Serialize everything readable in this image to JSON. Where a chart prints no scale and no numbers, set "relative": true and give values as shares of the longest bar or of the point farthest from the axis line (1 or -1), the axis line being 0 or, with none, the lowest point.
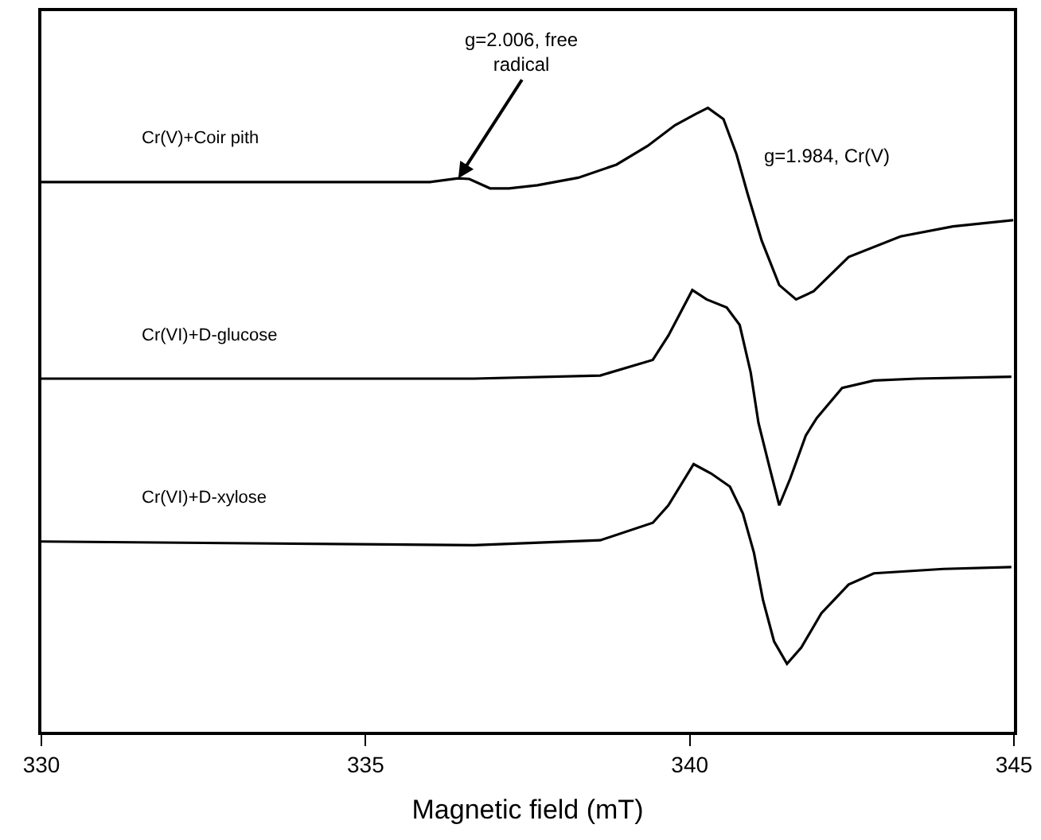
{
  "chart_data": {
    "type": "line",
    "relative": true,
    "xlabel": "Magnetic field (mT)",
    "xlim": [
      330,
      345
    ],
    "xticks": [
      330,
      335,
      340,
      345
    ],
    "legend": false,
    "marker": "none",
    "line_style": "solid",
    "tick_labels": "x",
    "series": [
      {
        "name": "Cr(V)+Coir pith",
        "color": "#000000",
        "x": [
          330,
          334.24,
          335.99,
          336.43,
          336.6,
          336.92,
          337.21,
          337.65,
          338.28,
          338.87,
          339.35,
          339.77,
          340.09,
          340.28,
          340.52,
          340.72,
          340.89,
          341.11,
          341.38,
          341.64,
          341.91,
          342.45,
          343.25,
          344.06,
          344.99
        ],
        "values": [
          0.881,
          0.881,
          0.881,
          0.887,
          0.886,
          0.871,
          0.871,
          0.876,
          0.888,
          0.909,
          0.939,
          0.972,
          0.99,
          1.0,
          0.982,
          0.926,
          0.863,
          0.787,
          0.716,
          0.693,
          0.706,
          0.761,
          0.794,
          0.81,
          0.82
        ]
      },
      {
        "name": "Cr(VI)+D-glucose",
        "color": "#000000",
        "x": [
          330,
          336.67,
          338.62,
          339.43,
          339.67,
          340.04,
          340.26,
          340.57,
          340.77,
          340.94,
          341.06,
          341.23,
          341.38,
          341.55,
          341.79,
          341.96,
          342.35,
          342.84,
          343.5,
          344.96
        ],
        "values": [
          0.566,
          0.566,
          0.571,
          0.596,
          0.635,
          0.708,
          0.693,
          0.68,
          0.652,
          0.576,
          0.495,
          0.424,
          0.363,
          0.406,
          0.475,
          0.503,
          0.551,
          0.563,
          0.566,
          0.569
        ]
      },
      {
        "name": "Cr(VI)+D-xylose",
        "color": "#000000",
        "x": [
          330,
          336.67,
          338.62,
          339.43,
          339.67,
          340.06,
          340.33,
          340.62,
          340.82,
          340.99,
          341.13,
          341.3,
          341.5,
          341.72,
          342.03,
          342.45,
          342.84,
          343.91,
          344.96
        ],
        "values": [
          0.305,
          0.299,
          0.307,
          0.335,
          0.363,
          0.429,
          0.414,
          0.393,
          0.35,
          0.287,
          0.211,
          0.145,
          0.109,
          0.135,
          0.19,
          0.236,
          0.254,
          0.261,
          0.264
        ]
      }
    ],
    "annotations": [
      {
        "text": "g=2.006, free radical",
        "x": 336.43,
        "y": 0.887
      },
      "g=1.984, Cr(V)"
    ]
  }
}
